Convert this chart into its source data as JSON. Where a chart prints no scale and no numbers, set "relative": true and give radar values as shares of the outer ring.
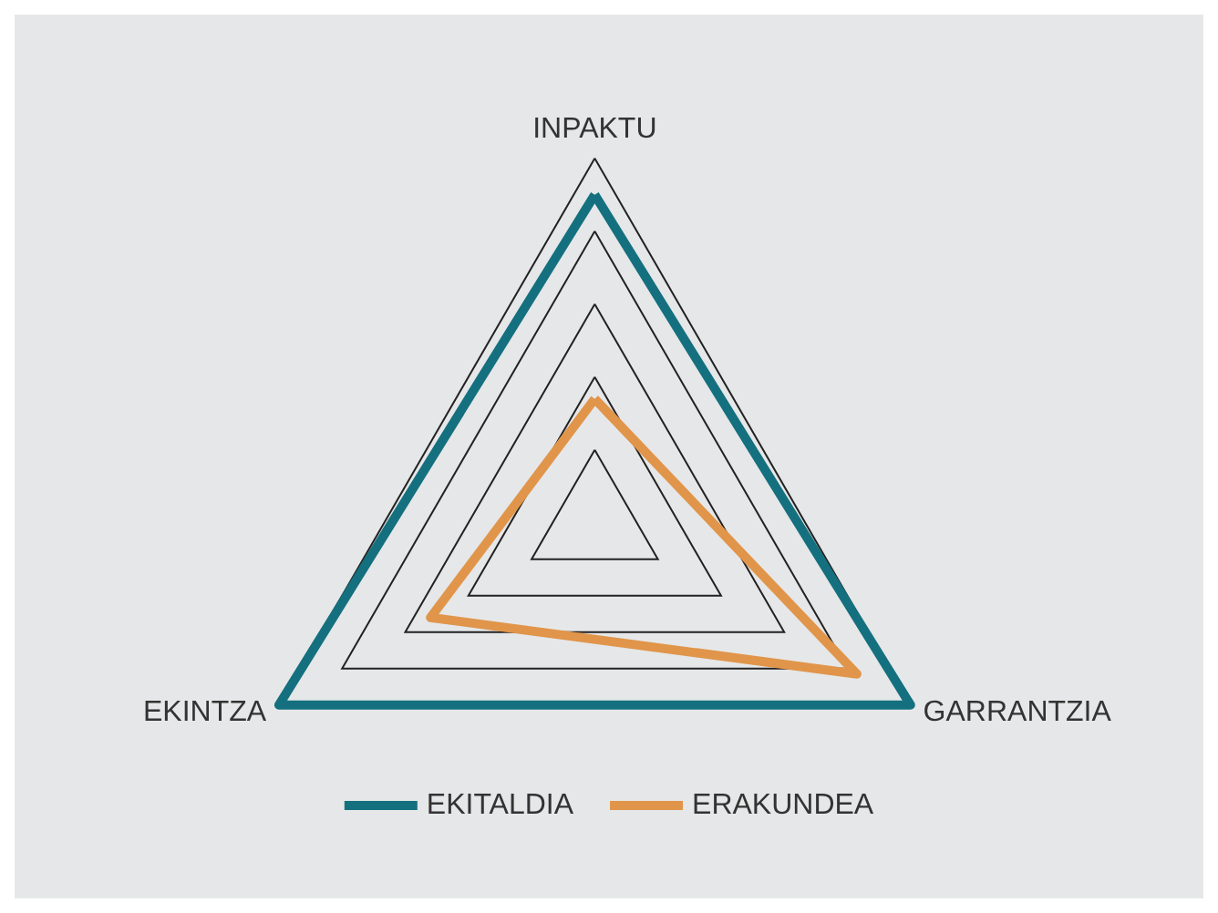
{
  "chart_data": {
    "type": "radar",
    "relative": true,
    "categories": [
      "INPAKTU",
      "GARRANTZIA",
      "EKINTZA"
    ],
    "series": [
      {
        "name": "EKITALDIA",
        "color": "#14707f",
        "values": [
          0.9,
          1.0,
          1.0
        ]
      },
      {
        "name": "ERAKUNDEA",
        "color": "#e0954a",
        "values": [
          0.34,
          0.83,
          0.52
        ]
      }
    ],
    "legend": "bottom",
    "marker": "none"
  }
}
